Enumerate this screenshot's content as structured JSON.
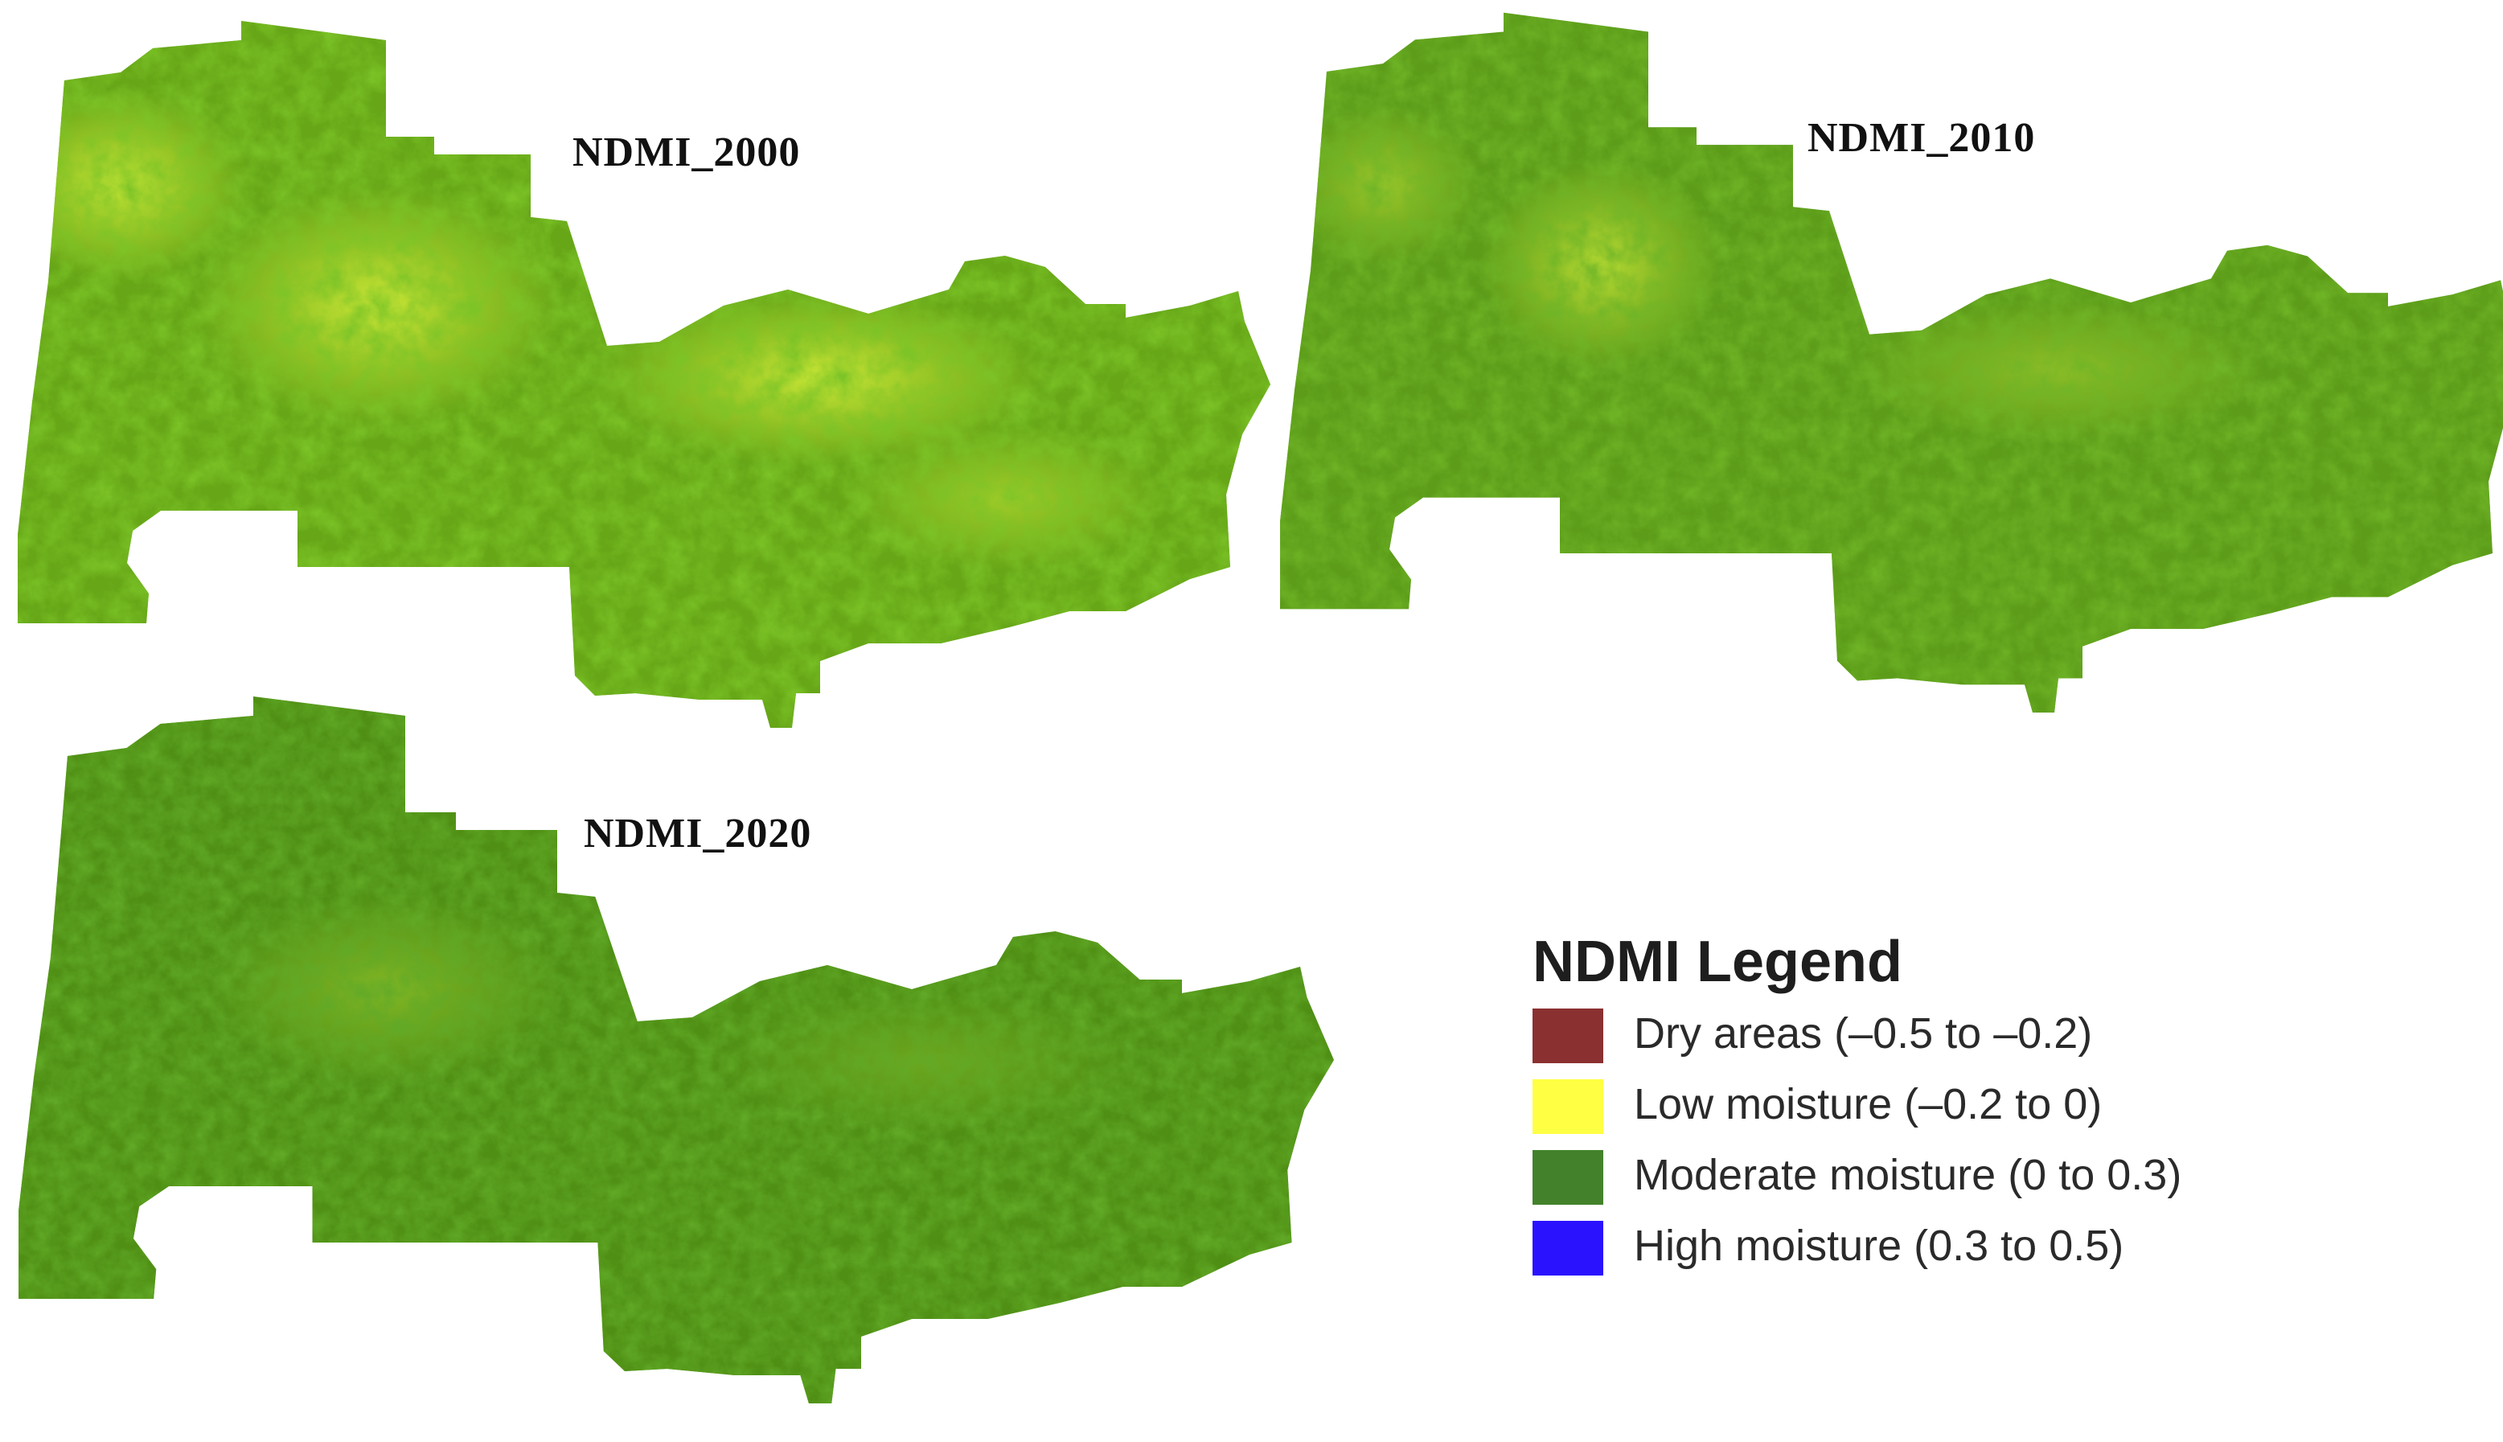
{
  "maps": [
    {
      "title": "NDMI_2000"
    },
    {
      "title": "NDMI_2010"
    },
    {
      "title": "NDMI_2020"
    }
  ],
  "legend": {
    "title": "NDMI Legend",
    "items": [
      {
        "label": "Dry areas (–0.5 to –0.2)",
        "color": "#8b3030"
      },
      {
        "label": "Low moisture (–0.2 to 0)",
        "color": "#ffff44"
      },
      {
        "label": "Moderate moisture (0 to 0.3)",
        "color": "#43822a"
      },
      {
        "label": "High moisture (0.3 to 0.5)",
        "color": "#2a12ff"
      }
    ]
  }
}
